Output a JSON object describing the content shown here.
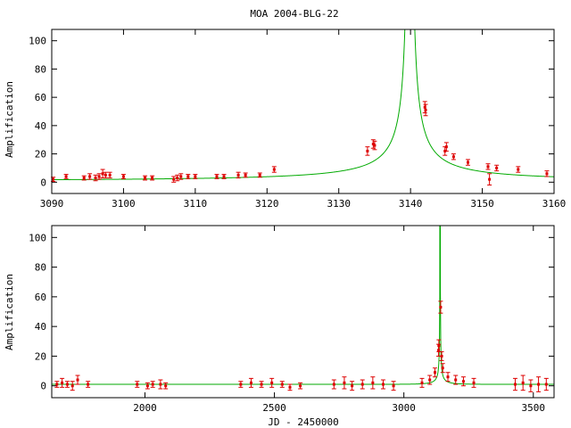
{
  "colors": {
    "model": "#00aa00",
    "data": "#dd0000",
    "axis": "#000000"
  },
  "title": "MOA 2004-BLG-22",
  "chart_data": [
    {
      "type": "line",
      "panel": "top",
      "xlabel": "",
      "ylabel": "Amplification",
      "xlim": [
        3090,
        3160
      ],
      "ylim": [
        -8,
        108
      ],
      "xticks": [
        3090,
        3100,
        3110,
        3120,
        3130,
        3140,
        3150,
        3160
      ],
      "yticks": [
        0,
        20,
        40,
        60,
        80,
        100
      ],
      "grid": false,
      "model": {
        "t0": 3139.9,
        "tE": 75,
        "u0": 0.0005
      },
      "observations": [
        {
          "x": 3090.2,
          "y": 2,
          "e": 1.5
        },
        {
          "x": 3092.0,
          "y": 4,
          "e": 1.5
        },
        {
          "x": 3094.5,
          "y": 3,
          "e": 1.5
        },
        {
          "x": 3095.3,
          "y": 4,
          "e": 2
        },
        {
          "x": 3096.1,
          "y": 3,
          "e": 2
        },
        {
          "x": 3096.6,
          "y": 4,
          "e": 2
        },
        {
          "x": 3097.1,
          "y": 6,
          "e": 3
        },
        {
          "x": 3097.5,
          "y": 5,
          "e": 2
        },
        {
          "x": 3098.1,
          "y": 5,
          "e": 2
        },
        {
          "x": 3100.0,
          "y": 4,
          "e": 1.5
        },
        {
          "x": 3103.0,
          "y": 3,
          "e": 1.5
        },
        {
          "x": 3104.0,
          "y": 3,
          "e": 1.5
        },
        {
          "x": 3107.0,
          "y": 2,
          "e": 2
        },
        {
          "x": 3107.5,
          "y": 3,
          "e": 2
        },
        {
          "x": 3108.0,
          "y": 4,
          "e": 2
        },
        {
          "x": 3109.0,
          "y": 4,
          "e": 1.5
        },
        {
          "x": 3110.0,
          "y": 4,
          "e": 1.5
        },
        {
          "x": 3113.0,
          "y": 4,
          "e": 1.5
        },
        {
          "x": 3114.0,
          "y": 4,
          "e": 1.5
        },
        {
          "x": 3116.0,
          "y": 5,
          "e": 2
        },
        {
          "x": 3117.0,
          "y": 5,
          "e": 1.5
        },
        {
          "x": 3119.0,
          "y": 5,
          "e": 1.5
        },
        {
          "x": 3121.0,
          "y": 9,
          "e": 2
        },
        {
          "x": 3134.0,
          "y": 22,
          "e": 3
        },
        {
          "x": 3134.8,
          "y": 27,
          "e": 3
        },
        {
          "x": 3135.0,
          "y": 26,
          "e": 3
        },
        {
          "x": 3142.0,
          "y": 53,
          "e": 4
        },
        {
          "x": 3142.1,
          "y": 51,
          "e": 4
        },
        {
          "x": 3144.8,
          "y": 22,
          "e": 3
        },
        {
          "x": 3145.0,
          "y": 25,
          "e": 3
        },
        {
          "x": 3146.0,
          "y": 18,
          "e": 2
        },
        {
          "x": 3148.0,
          "y": 14,
          "e": 2
        },
        {
          "x": 3150.8,
          "y": 11,
          "e": 2
        },
        {
          "x": 3151.0,
          "y": 2,
          "e": 4
        },
        {
          "x": 3152.0,
          "y": 10,
          "e": 2
        },
        {
          "x": 3155.0,
          "y": 9,
          "e": 2
        },
        {
          "x": 3159.0,
          "y": 6,
          "e": 2
        }
      ]
    },
    {
      "type": "line",
      "panel": "bottom",
      "xlabel": "JD - 2450000",
      "ylabel": "Amplification",
      "xlim": [
        1640,
        3580
      ],
      "ylim": [
        -8,
        108
      ],
      "xticks": [
        2000,
        2500,
        3000,
        3500
      ],
      "yticks": [
        0,
        20,
        40,
        60,
        80,
        100
      ],
      "grid": false,
      "model": {
        "t0": 3139.9,
        "tE": 75,
        "u0": 0.0005
      },
      "observations": [
        {
          "x": 1660,
          "y": 1,
          "e": 2
        },
        {
          "x": 1680,
          "y": 2,
          "e": 3
        },
        {
          "x": 1700,
          "y": 1,
          "e": 2
        },
        {
          "x": 1720,
          "y": 0,
          "e": 3
        },
        {
          "x": 1740,
          "y": 4,
          "e": 3
        },
        {
          "x": 1780,
          "y": 1,
          "e": 2
        },
        {
          "x": 1970,
          "y": 1,
          "e": 2
        },
        {
          "x": 2010,
          "y": 0,
          "e": 2
        },
        {
          "x": 2030,
          "y": 1,
          "e": 2
        },
        {
          "x": 2060,
          "y": 1,
          "e": 3
        },
        {
          "x": 2080,
          "y": 0,
          "e": 2
        },
        {
          "x": 2370,
          "y": 1,
          "e": 2
        },
        {
          "x": 2410,
          "y": 2,
          "e": 3
        },
        {
          "x": 2450,
          "y": 1,
          "e": 2
        },
        {
          "x": 2490,
          "y": 2,
          "e": 3
        },
        {
          "x": 2530,
          "y": 1,
          "e": 2
        },
        {
          "x": 2560,
          "y": -1,
          "e": 2
        },
        {
          "x": 2600,
          "y": 0,
          "e": 2
        },
        {
          "x": 2730,
          "y": 1,
          "e": 3
        },
        {
          "x": 2770,
          "y": 2,
          "e": 4
        },
        {
          "x": 2800,
          "y": 0,
          "e": 3
        },
        {
          "x": 2840,
          "y": 1,
          "e": 3
        },
        {
          "x": 2880,
          "y": 2,
          "e": 4
        },
        {
          "x": 2920,
          "y": 1,
          "e": 3
        },
        {
          "x": 2960,
          "y": 0,
          "e": 3
        },
        {
          "x": 3070,
          "y": 2,
          "e": 3
        },
        {
          "x": 3100,
          "y": 4,
          "e": 3
        },
        {
          "x": 3120,
          "y": 9,
          "e": 3
        },
        {
          "x": 3134,
          "y": 24,
          "e": 4
        },
        {
          "x": 3135,
          "y": 27,
          "e": 4
        },
        {
          "x": 3142,
          "y": 53,
          "e": 4
        },
        {
          "x": 3146,
          "y": 20,
          "e": 3
        },
        {
          "x": 3150,
          "y": 12,
          "e": 3
        },
        {
          "x": 3170,
          "y": 6,
          "e": 3
        },
        {
          "x": 3200,
          "y": 4,
          "e": 3
        },
        {
          "x": 3230,
          "y": 3,
          "e": 3
        },
        {
          "x": 3270,
          "y": 2,
          "e": 3
        },
        {
          "x": 3430,
          "y": 1,
          "e": 4
        },
        {
          "x": 3460,
          "y": 2,
          "e": 5
        },
        {
          "x": 3490,
          "y": 0,
          "e": 4
        },
        {
          "x": 3520,
          "y": 1,
          "e": 5
        },
        {
          "x": 3550,
          "y": 1,
          "e": 4
        }
      ]
    }
  ]
}
